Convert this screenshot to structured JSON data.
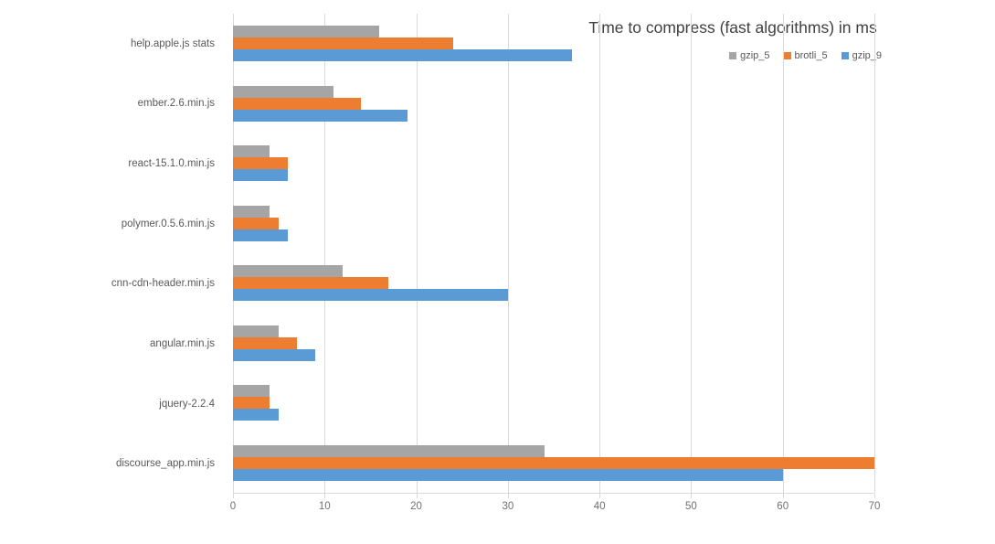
{
  "chart_data": {
    "type": "bar",
    "orientation": "horizontal",
    "title": "Time to compress (fast algorithms) in ms",
    "categories": [
      "help.apple.js stats",
      "ember.2.6.min.js",
      "react-15.1.0.min.js",
      "polymer.0.5.6.min.js",
      "cnn-cdn-header.min.js",
      "angular.min.js",
      "jquery-2.2.4",
      "discourse_app.min.js"
    ],
    "series": [
      {
        "name": "gzip_5",
        "color": "#a5a5a5",
        "values": [
          16,
          11,
          4,
          4,
          12,
          5,
          4,
          34
        ]
      },
      {
        "name": "brotli_5",
        "color": "#ed7d31",
        "values": [
          24,
          14,
          6,
          5,
          17,
          7,
          4,
          70
        ]
      },
      {
        "name": "gzip_9",
        "color": "#5b9bd5",
        "values": [
          37,
          19,
          6,
          6,
          30,
          9,
          5,
          60
        ]
      }
    ],
    "xlabel": "",
    "ylabel": "",
    "xlim": [
      0,
      70
    ],
    "x_ticks": [
      0,
      10,
      20,
      30,
      40,
      50,
      60,
      70
    ],
    "grid": true,
    "legend_position": "top-right"
  },
  "colors": {
    "grid": "#d9d9d9",
    "axis_text": "#707070",
    "category_text": "#595959",
    "title_text": "#404040",
    "background": "#ffffff"
  }
}
